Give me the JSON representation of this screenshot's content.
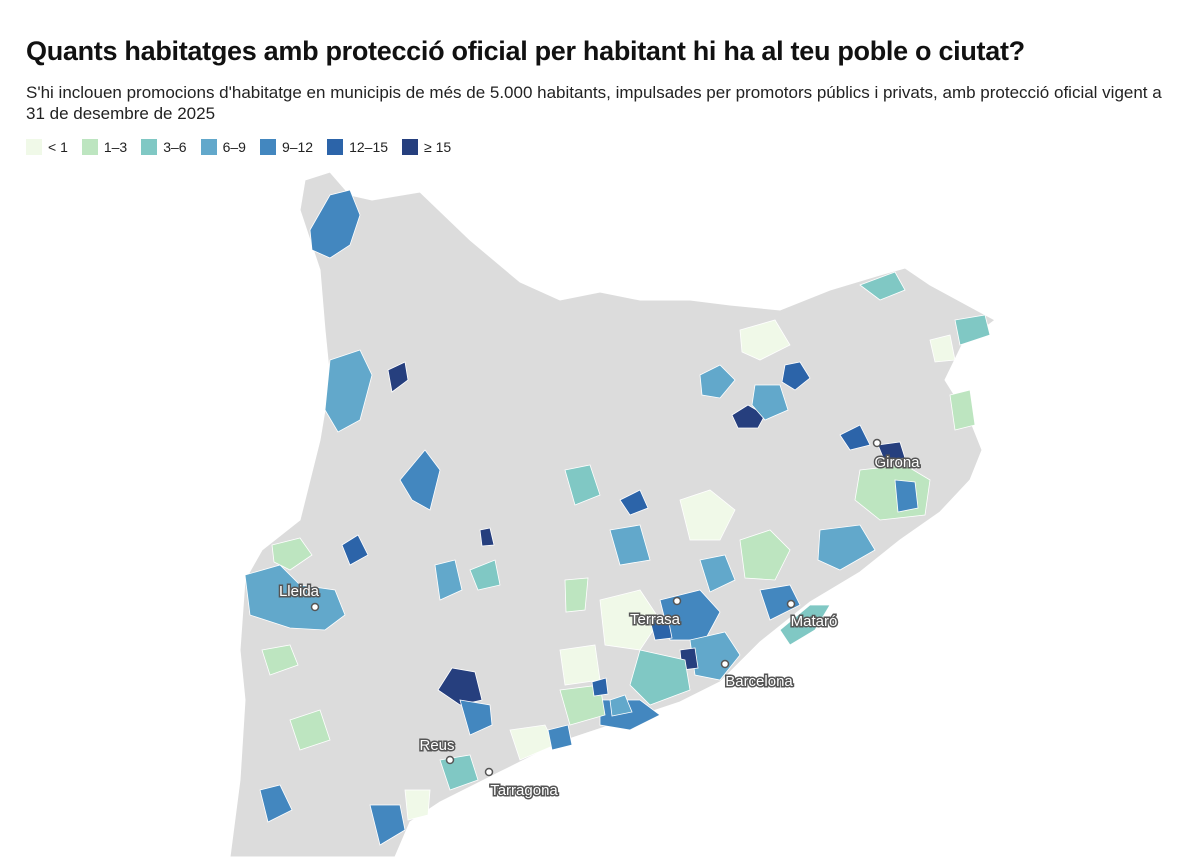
{
  "header": {
    "title": "Quants habitatges amb protecció oficial per habitant hi ha al teu poble o ciutat?",
    "subtitle": "S'hi inclouen promocions d'habitatge en municipis de més de 5.000 habitants, impulsades per promotors públics i privats, amb protecció oficial vigent a 31 de desembre de 2025"
  },
  "legend": [
    {
      "label": "< 1",
      "color": "#f0f9e8"
    },
    {
      "label": "1–3",
      "color": "#bde5c0"
    },
    {
      "label": "3–6",
      "color": "#80c8c4"
    },
    {
      "label": "6–9",
      "color": "#62a8cb"
    },
    {
      "label": "9–12",
      "color": "#4387bf"
    },
    {
      "label": "12–15",
      "color": "#2c64a9"
    },
    {
      "label": "≥ 15",
      "color": "#263f7e"
    }
  ],
  "cities": [
    "Lleida",
    "Terrasa",
    "Mataró",
    "Barcelona",
    "Girona",
    "Reus",
    "Tarragona"
  ]
}
